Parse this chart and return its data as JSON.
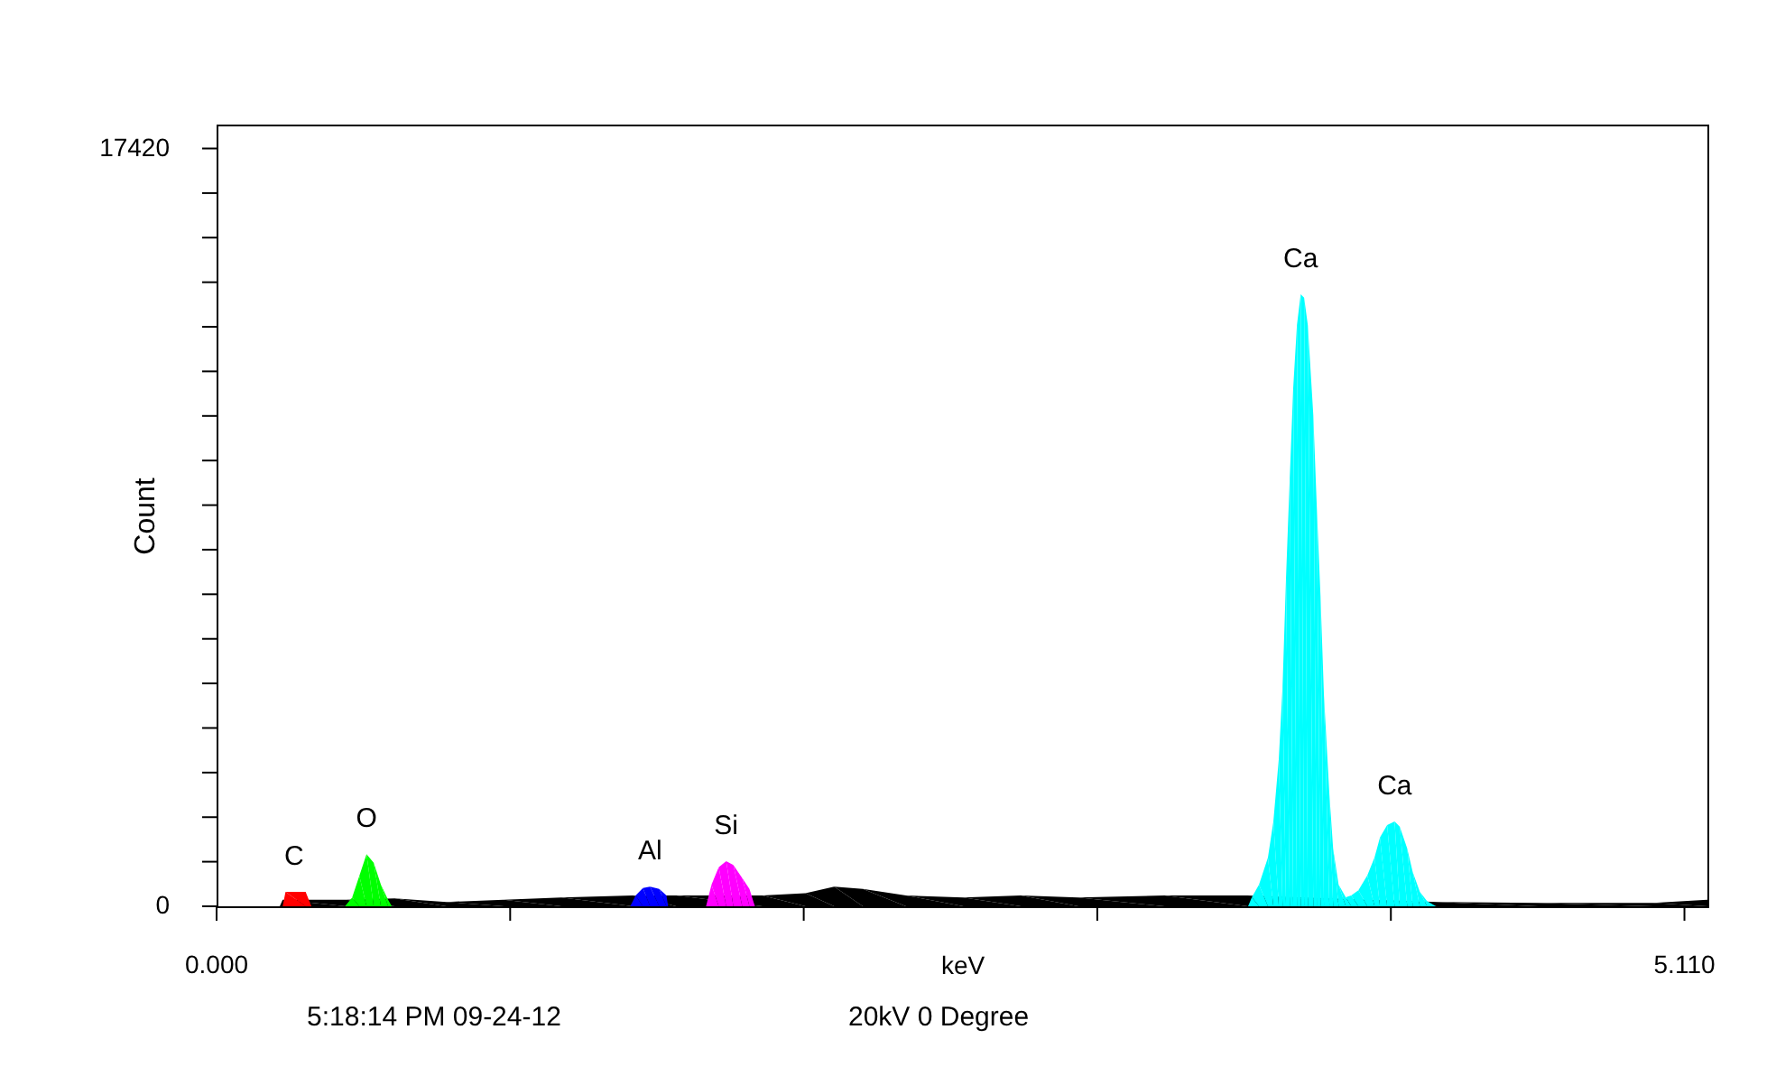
{
  "chart_data": {
    "type": "area",
    "xlabel": "keV",
    "ylabel": "Count",
    "xlim": [
      0,
      5.19
    ],
    "ylim": [
      0,
      17970
    ],
    "xticks": [
      {
        "value": 0,
        "label": "0.000"
      },
      {
        "value": 1.022,
        "label": null
      },
      {
        "value": 2.044,
        "label": null
      },
      {
        "value": 3.066,
        "label": null
      },
      {
        "value": 4.088,
        "label": null
      },
      {
        "value": 5.11,
        "label": "5.110"
      }
    ],
    "yticks": [
      0,
      {
        "value": 1025,
        "label": null
      },
      {
        "value": 2049,
        "label": null
      },
      {
        "value": 3074,
        "label": null
      },
      {
        "value": 4099,
        "label": null
      },
      {
        "value": 5124,
        "label": null
      },
      {
        "value": 6148,
        "label": null
      },
      {
        "value": 7173,
        "label": null
      },
      {
        "value": 8198,
        "label": null
      },
      {
        "value": 9222,
        "label": null
      },
      {
        "value": 10247,
        "label": null
      },
      {
        "value": 11272,
        "label": null
      },
      {
        "value": 12297,
        "label": null
      },
      {
        "value": 13321,
        "label": null
      },
      {
        "value": 14346,
        "label": null
      },
      {
        "value": 15371,
        "label": null
      },
      {
        "value": 16395,
        "label": null
      },
      17420
    ],
    "grid": false,
    "series": [
      {
        "color": "#000000",
        "x": [
          0.22,
          0.23,
          0.45,
          0.62,
          0.8,
          1.0,
          1.2,
          1.45,
          1.6,
          1.9,
          2.05,
          2.15,
          2.25,
          2.4,
          2.6,
          2.8,
          3.0,
          3.3,
          3.59,
          4.25,
          4.6,
          5.0,
          5.19
        ],
        "values": [
          0,
          150,
          150,
          180,
          100,
          150,
          200,
          250,
          250,
          250,
          300,
          450,
          400,
          250,
          200,
          250,
          200,
          250,
          250,
          100,
          80,
          80,
          150
        ]
      },
      {
        "color": "#ff0000",
        "x": [
          0.23,
          0.24,
          0.31,
          0.33
        ],
        "values": [
          0,
          330,
          330,
          0
        ]
      },
      {
        "color": "#00ff00",
        "x": [
          0.447,
          0.472,
          0.497,
          0.522,
          0.547,
          0.572,
          0.597,
          0.61
        ],
        "values": [
          0,
          200,
          700,
          1200,
          1000,
          500,
          150,
          0
        ]
      },
      {
        "color": "#0000ff",
        "x": [
          1.44,
          1.459,
          1.484,
          1.509,
          1.541,
          1.566,
          1.572
        ],
        "values": [
          0,
          250,
          420,
          450,
          400,
          250,
          0
        ]
      },
      {
        "color": "#ff00ff",
        "x": [
          1.704,
          1.723,
          1.748,
          1.774,
          1.799,
          1.83,
          1.855,
          1.874
        ],
        "values": [
          0,
          500,
          900,
          1040,
          950,
          650,
          400,
          0
        ]
      },
      {
        "color": "#00ffff",
        "x": [
          3.591,
          3.604,
          3.629,
          3.66,
          3.679,
          3.698,
          3.711,
          3.723,
          3.736,
          3.748,
          3.761,
          3.774,
          3.786,
          3.799,
          3.818,
          3.83,
          3.843,
          3.855,
          3.874,
          3.887,
          3.906,
          3.931,
          3.95,
          3.975,
          4.006,
          4.031,
          4.05,
          4.075,
          4.101,
          4.119,
          4.145,
          4.164,
          4.189,
          4.214,
          4.245
        ],
        "values": [
          0,
          208,
          498,
          1120,
          1950,
          3400,
          5060,
          7550,
          9840,
          11910,
          13360,
          14070,
          13990,
          13360,
          11290,
          9210,
          7140,
          4860,
          2570,
          1330,
          500,
          210,
          250,
          370,
          710,
          1120,
          1580,
          1870,
          1950,
          1830,
          1330,
          790,
          330,
          120,
          0
        ]
      }
    ],
    "annotations": [
      {
        "text": "C",
        "x": 0.27,
        "y": 330
      },
      {
        "text": "O",
        "x": 0.522,
        "y": 1200
      },
      {
        "text": "Al",
        "x": 1.509,
        "y": 450
      },
      {
        "text": "Si",
        "x": 1.774,
        "y": 1040
      },
      {
        "text": "Ca",
        "x": 3.774,
        "y": 14070
      },
      {
        "text": "Ca",
        "x": 4.101,
        "y": 1950
      },
      "5:18:14 PM  09-24-12",
      "20kV 0 Degree"
    ]
  }
}
